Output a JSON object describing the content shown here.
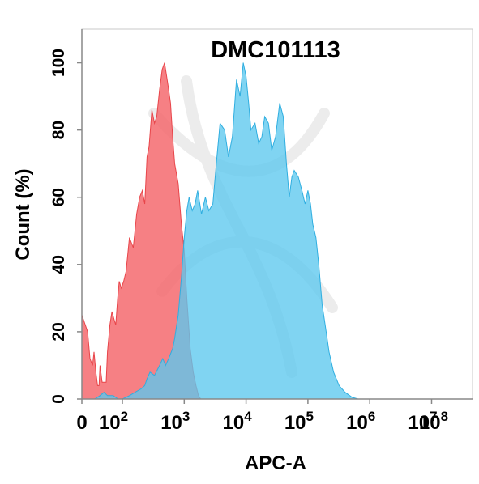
{
  "chart_data": {
    "type": "area",
    "title": "DMC101113",
    "xlabel": "APC-A",
    "ylabel": "Count  (%)",
    "x_scale": "biexponential",
    "xlim": [
      0,
      100000000
    ],
    "ylim": [
      0,
      110
    ],
    "y_ticks": [
      "0",
      "20",
      "40",
      "60",
      "80",
      "100"
    ],
    "x_ticks": [
      {
        "value": 0,
        "base": "0",
        "exp": ""
      },
      {
        "value": 100,
        "base": "10",
        "exp": "2"
      },
      {
        "value": 1000,
        "base": "10",
        "exp": "3"
      },
      {
        "value": 10000,
        "base": "10",
        "exp": "4"
      },
      {
        "value": 100000,
        "base": "10",
        "exp": "5"
      },
      {
        "value": 1000000,
        "base": "10",
        "exp": "6"
      },
      {
        "value": 10000000,
        "base": "10",
        "exp": "7"
      },
      {
        "value": 100000000,
        "base": "10",
        "exp": "8"
      }
    ],
    "grid": false,
    "series": [
      {
        "color": "#f46a6e",
        "stroke": "#e8454a",
        "points": [
          [
            0,
            25
          ],
          [
            2,
            20
          ],
          [
            4,
            12
          ],
          [
            7,
            10
          ],
          [
            9,
            14
          ],
          [
            12,
            8
          ],
          [
            15,
            4
          ],
          [
            18,
            4
          ],
          [
            20,
            10
          ],
          [
            25,
            5
          ],
          [
            30,
            5
          ],
          [
            36,
            5
          ],
          [
            40,
            14
          ],
          [
            48,
            22
          ],
          [
            55,
            26
          ],
          [
            62,
            24
          ],
          [
            70,
            22
          ],
          [
            78,
            30
          ],
          [
            85,
            35
          ],
          [
            95,
            33
          ],
          [
            105,
            35
          ],
          [
            115,
            38
          ],
          [
            130,
            48
          ],
          [
            150,
            45
          ],
          [
            170,
            55
          ],
          [
            190,
            60
          ],
          [
            210,
            62
          ],
          [
            230,
            58
          ],
          [
            250,
            72
          ],
          [
            270,
            75
          ],
          [
            300,
            86
          ],
          [
            330,
            82
          ],
          [
            360,
            84
          ],
          [
            400,
            92
          ],
          [
            440,
            98
          ],
          [
            480,
            100
          ],
          [
            520,
            96
          ],
          [
            560,
            92
          ],
          [
            600,
            88
          ],
          [
            650,
            78
          ],
          [
            700,
            70
          ],
          [
            800,
            64
          ],
          [
            900,
            52
          ],
          [
            1000,
            44
          ],
          [
            1100,
            30
          ],
          [
            1250,
            15
          ],
          [
            1400,
            8
          ],
          [
            1550,
            4
          ],
          [
            1700,
            1
          ],
          [
            1850,
            0
          ]
        ]
      },
      {
        "color": "#5cc8ee",
        "stroke": "#2faee0",
        "points": [
          [
            0,
            0
          ],
          [
            10,
            0
          ],
          [
            20,
            1
          ],
          [
            30,
            2
          ],
          [
            40,
            1
          ],
          [
            60,
            1
          ],
          [
            80,
            0
          ],
          [
            100,
            0
          ],
          [
            130,
            1
          ],
          [
            160,
            2
          ],
          [
            200,
            3
          ],
          [
            230,
            4
          ],
          [
            250,
            6
          ],
          [
            280,
            8
          ],
          [
            330,
            7
          ],
          [
            400,
            10
          ],
          [
            450,
            12
          ],
          [
            500,
            10
          ],
          [
            560,
            12
          ],
          [
            650,
            15
          ],
          [
            700,
            18
          ],
          [
            800,
            25
          ],
          [
            900,
            36
          ],
          [
            1000,
            48
          ],
          [
            1100,
            56
          ],
          [
            1200,
            60
          ],
          [
            1350,
            56
          ],
          [
            1500,
            58
          ],
          [
            1650,
            62
          ],
          [
            1900,
            55
          ],
          [
            2200,
            60
          ],
          [
            2500,
            56
          ],
          [
            2900,
            58
          ],
          [
            3300,
            70
          ],
          [
            3800,
            82
          ],
          [
            4500,
            80
          ],
          [
            5200,
            72
          ],
          [
            6000,
            78
          ],
          [
            7000,
            95
          ],
          [
            8000,
            90
          ],
          [
            9000,
            100
          ],
          [
            10000,
            96
          ],
          [
            11000,
            88
          ],
          [
            12000,
            80
          ],
          [
            14000,
            82
          ],
          [
            16000,
            76
          ],
          [
            18000,
            78
          ],
          [
            20000,
            84
          ],
          [
            23000,
            82
          ],
          [
            26000,
            74
          ],
          [
            30000,
            78
          ],
          [
            35000,
            88
          ],
          [
            40000,
            84
          ],
          [
            45000,
            70
          ],
          [
            50000,
            60
          ],
          [
            55000,
            66
          ],
          [
            60000,
            68
          ],
          [
            70000,
            66
          ],
          [
            80000,
            62
          ],
          [
            90000,
            58
          ],
          [
            100000,
            62
          ],
          [
            110000,
            58
          ],
          [
            120000,
            52
          ],
          [
            135000,
            48
          ],
          [
            150000,
            40
          ],
          [
            170000,
            28
          ],
          [
            190000,
            22
          ],
          [
            220000,
            14
          ],
          [
            260000,
            8
          ],
          [
            320000,
            4
          ],
          [
            400000,
            2
          ],
          [
            520000,
            0.5
          ],
          [
            650000,
            0
          ]
        ]
      }
    ]
  }
}
